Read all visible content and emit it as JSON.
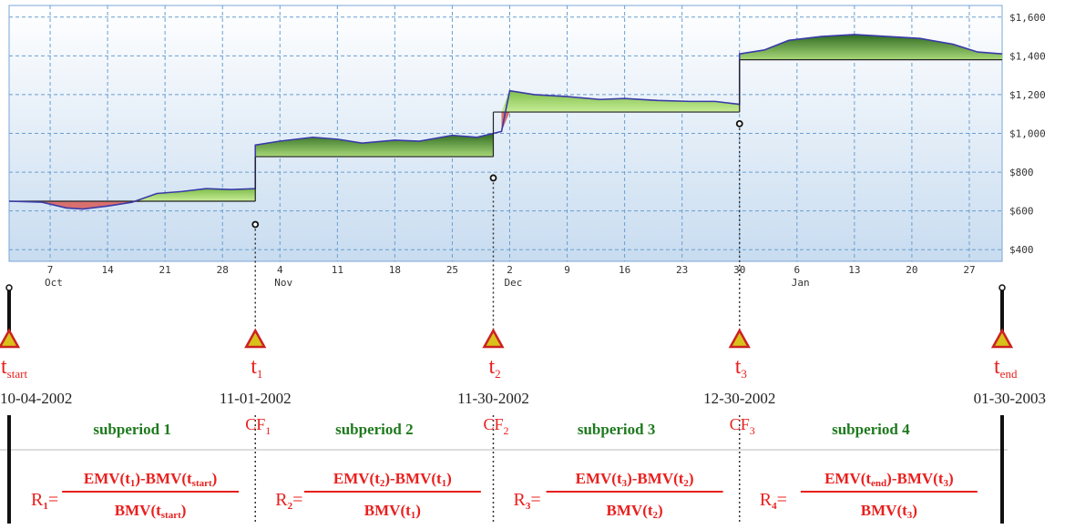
{
  "chart_data": {
    "type": "area",
    "y_axis": {
      "ticks": [
        "$400",
        "$600",
        "$800",
        "$1,000",
        "$1,200",
        "$1,400",
        "$1,600"
      ],
      "values": [
        400,
        600,
        800,
        1000,
        1200,
        1400,
        1600
      ],
      "ylim": [
        340,
        1660
      ],
      "position": "right"
    },
    "x_axis": {
      "range": [
        "2002-10-02",
        "2003-01-31"
      ],
      "tick_labels": [
        {
          "label": "7",
          "date": "2002-10-07"
        },
        {
          "label": "14",
          "date": "2002-10-14"
        },
        {
          "label": "21",
          "date": "2002-10-21"
        },
        {
          "label": "28",
          "date": "2002-10-28"
        },
        {
          "label": "4",
          "date": "2002-11-04"
        },
        {
          "label": "11",
          "date": "2002-11-11"
        },
        {
          "label": "18",
          "date": "2002-11-18"
        },
        {
          "label": "25",
          "date": "2002-11-25"
        },
        {
          "label": "2",
          "date": "2002-12-02"
        },
        {
          "label": "9",
          "date": "2002-12-09"
        },
        {
          "label": "16",
          "date": "2002-12-16"
        },
        {
          "label": "23",
          "date": "2002-12-23"
        },
        {
          "label": "30",
          "date": "2002-12-30"
        },
        {
          "label": "6",
          "date": "2003-01-06"
        },
        {
          "label": "13",
          "date": "2003-01-13"
        },
        {
          "label": "20",
          "date": "2003-01-20"
        },
        {
          "label": "27",
          "date": "2003-01-27"
        }
      ],
      "month_labels": [
        {
          "label": "Oct",
          "date": "2002-10-07"
        },
        {
          "label": "Nov",
          "date": "2002-11-04"
        },
        {
          "label": "Dec",
          "date": "2002-12-02"
        },
        {
          "label": "Jan",
          "date": "2003-01-06"
        }
      ]
    },
    "grid": true,
    "baselines": [
      {
        "from": "2002-10-02",
        "to": "2002-11-01",
        "value": 650
      },
      {
        "from": "2002-11-01",
        "to": "2002-11-30",
        "value": 880
      },
      {
        "from": "2002-11-30",
        "to": "2002-12-30",
        "value": 1110
      },
      {
        "from": "2002-12-30",
        "to": "2003-01-31",
        "value": 1380
      }
    ],
    "value_series": [
      [
        "2002-10-02",
        650
      ],
      [
        "2002-10-06",
        645
      ],
      [
        "2002-10-09",
        615
      ],
      [
        "2002-10-11",
        610
      ],
      [
        "2002-10-14",
        625
      ],
      [
        "2002-10-17",
        645
      ],
      [
        "2002-10-20",
        690
      ],
      [
        "2002-10-23",
        700
      ],
      [
        "2002-10-26",
        715
      ],
      [
        "2002-10-29",
        710
      ],
      [
        "2002-11-01",
        715
      ],
      [
        "2002-11-01",
        940
      ],
      [
        "2002-11-04",
        960
      ],
      [
        "2002-11-08",
        980
      ],
      [
        "2002-11-11",
        970
      ],
      [
        "2002-11-14",
        950
      ],
      [
        "2002-11-18",
        965
      ],
      [
        "2002-11-21",
        960
      ],
      [
        "2002-11-25",
        990
      ],
      [
        "2002-11-28",
        980
      ],
      [
        "2002-11-30",
        1000
      ],
      [
        "2002-12-01",
        1010
      ],
      [
        "2002-12-02",
        1220
      ],
      [
        "2002-12-05",
        1200
      ],
      [
        "2002-12-09",
        1190
      ],
      [
        "2002-12-13",
        1175
      ],
      [
        "2002-12-16",
        1180
      ],
      [
        "2002-12-20",
        1170
      ],
      [
        "2002-12-24",
        1165
      ],
      [
        "2002-12-27",
        1165
      ],
      [
        "2002-12-30",
        1150
      ],
      [
        "2002-12-30",
        1410
      ],
      [
        "2003-01-02",
        1430
      ],
      [
        "2003-01-05",
        1480
      ],
      [
        "2003-01-09",
        1500
      ],
      [
        "2003-01-13",
        1510
      ],
      [
        "2003-01-17",
        1500
      ],
      [
        "2003-01-21",
        1490
      ],
      [
        "2003-01-25",
        1460
      ],
      [
        "2003-01-28",
        1420
      ],
      [
        "2003-01-31",
        1410
      ]
    ],
    "markers": [
      {
        "date": "2002-11-01",
        "value": 530
      },
      {
        "date": "2002-11-30",
        "value": 770
      },
      {
        "date": "2002-12-30",
        "value": 1050
      }
    ],
    "colors": {
      "line": "#3a3aa8",
      "gain_dark": "#2f6b22",
      "gain_light": "#a8d878",
      "loss": "#d87070",
      "plot_bg_top": "#ffffff",
      "plot_bg_bottom": "#c8dcf0",
      "grid": "#6a9fd0",
      "accent_red": "#e8201e",
      "accent_green": "#1e7a1e",
      "triangle_fill": "#d8c21a"
    }
  },
  "timeline": {
    "points": [
      {
        "name": "t",
        "sub": "start",
        "date": "10-04-2002",
        "on": "2002-10-02"
      },
      {
        "name": "t",
        "sub": "1",
        "date": "11-01-2002",
        "on": "2002-11-01"
      },
      {
        "name": "t",
        "sub": "2",
        "date": "11-30-2002",
        "on": "2002-11-30"
      },
      {
        "name": "t",
        "sub": "3",
        "date": "12-30-2002",
        "on": "2002-12-30"
      },
      {
        "name": "t",
        "sub": "end",
        "date": "01-30-2003",
        "on": "2003-01-31"
      }
    ],
    "cash_flows": [
      {
        "name": "CF",
        "sub": "1"
      },
      {
        "name": "CF",
        "sub": "2"
      },
      {
        "name": "CF",
        "sub": "3"
      }
    ],
    "subperiods": [
      "subperiod 1",
      "subperiod 2",
      "subperiod 3",
      "subperiod 4"
    ]
  },
  "formulas": [
    {
      "r": "R",
      "r_sub": "1",
      "num": [
        "EMV(t",
        "1",
        ")-BMV(t",
        "start",
        ")"
      ],
      "den": [
        "BMV(t",
        "start",
        ")"
      ]
    },
    {
      "r": "R",
      "r_sub": "2",
      "num": [
        "EMV(t",
        "2",
        ")-BMV(t",
        "1",
        ")"
      ],
      "den": [
        "BMV(t",
        "1",
        ")"
      ]
    },
    {
      "r": "R",
      "r_sub": "3",
      "num": [
        "EMV(t",
        "3",
        ")-BMV(t",
        "2",
        ")"
      ],
      "den": [
        "BMV(t",
        "2",
        ")"
      ]
    },
    {
      "r": "R",
      "r_sub": "4",
      "num": [
        "EMV(t",
        "end",
        ")-BMV(t",
        "3",
        ")"
      ],
      "den": [
        "BMV(t",
        "3",
        ")"
      ]
    }
  ],
  "equals_sign": "="
}
